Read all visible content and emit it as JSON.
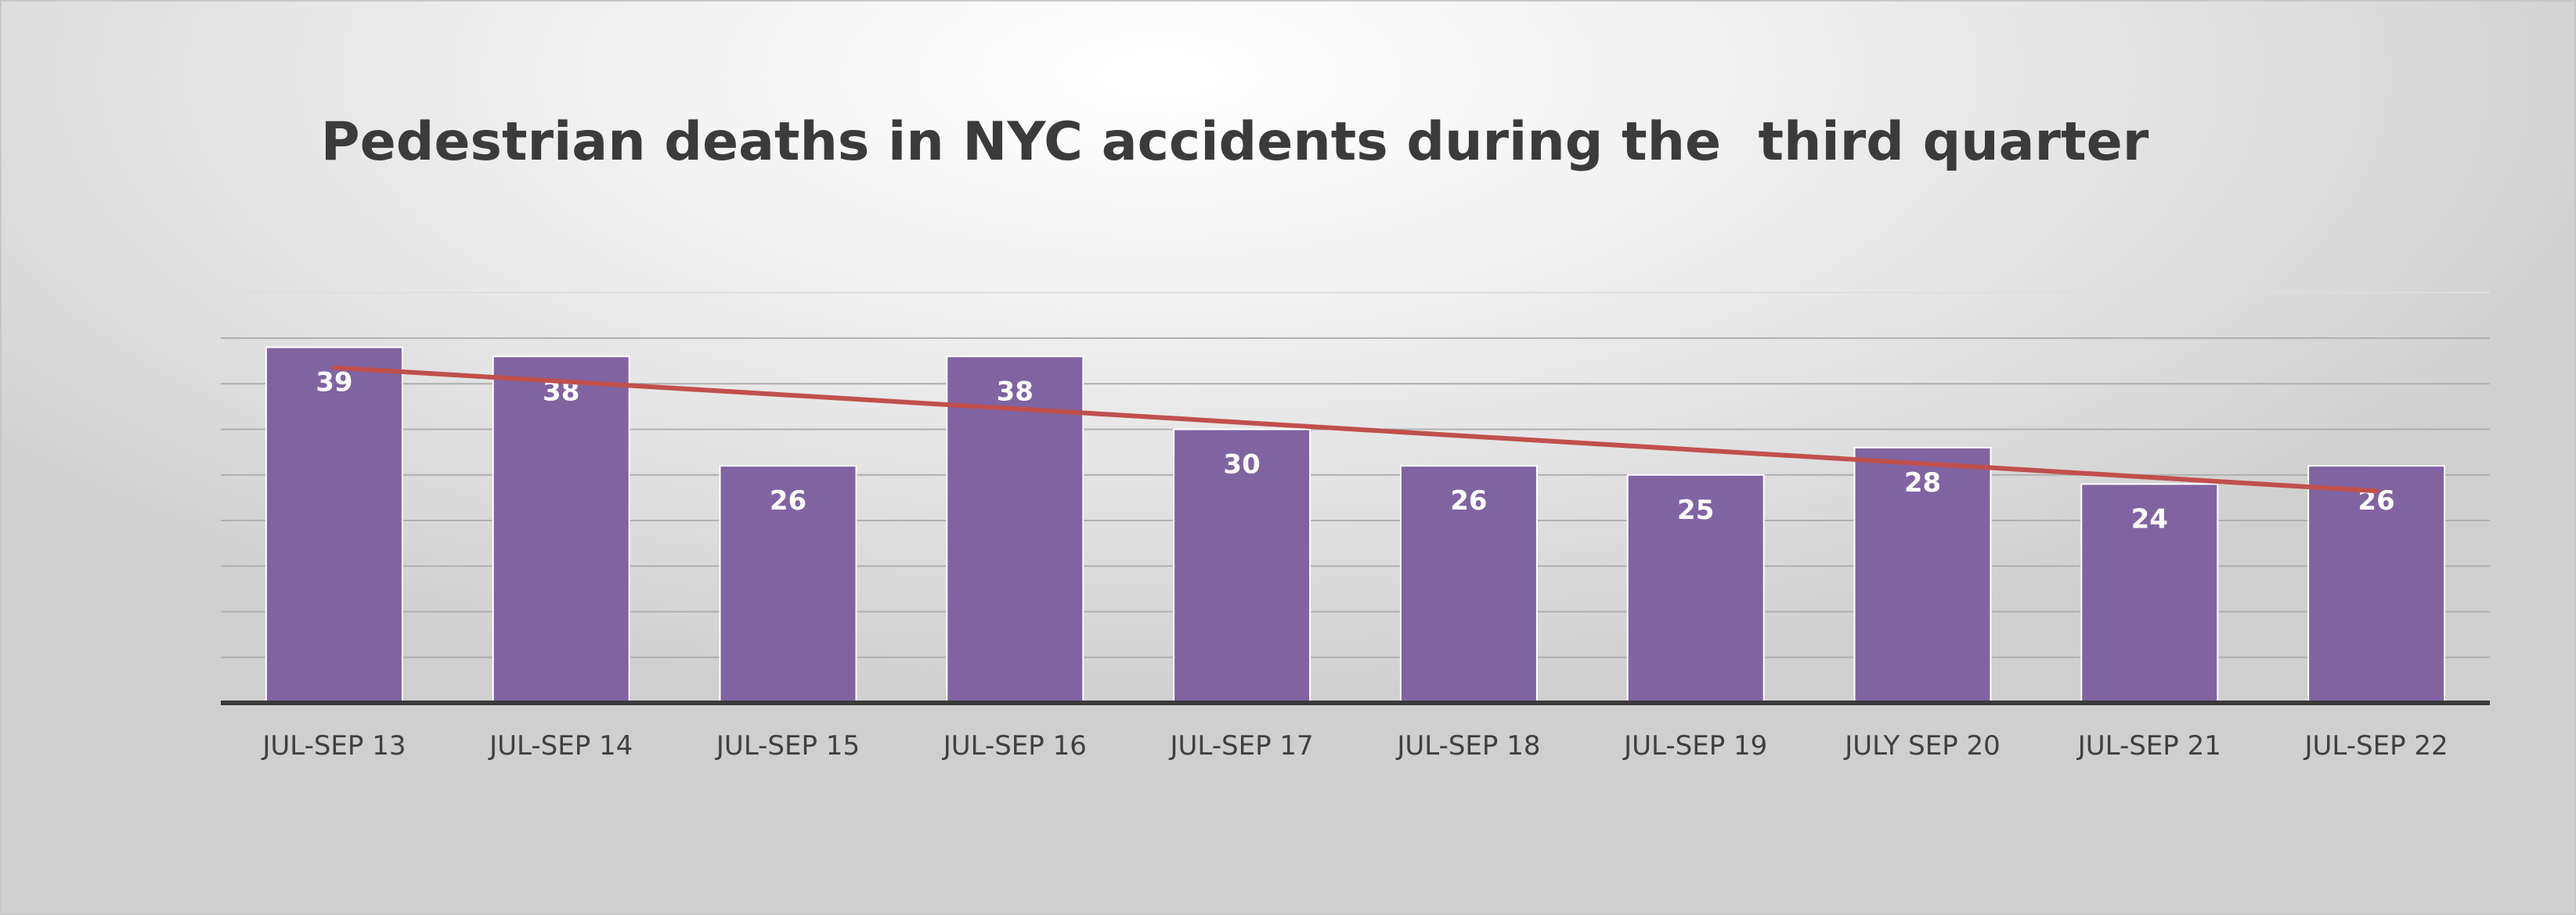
{
  "chart_data": {
    "type": "bar",
    "title": "Pedestrian deaths in NYC accidents during the  third quarter",
    "xlabel": "",
    "ylabel": "",
    "categories": [
      "JUL-SEP 13",
      "JUL-SEP 14",
      "JUL-SEP 15",
      "JUL-SEP 16",
      "JUL-SEP 17",
      "JUL-SEP 18",
      "JUL-SEP 19",
      "JULY SEP 20",
      "JUL-SEP 21",
      "JUL-SEP 22"
    ],
    "series": [
      {
        "values": [
          39,
          38,
          26,
          38,
          30,
          26,
          25,
          28,
          24,
          26
        ],
        "color": "#8064a2"
      }
    ],
    "trendline": {
      "type": "linear",
      "color": "#c0504d"
    },
    "ylim": [
      0,
      45
    ],
    "grid": true,
    "legend": "none",
    "data_labels": true,
    "y_tick_labels_shown": false
  }
}
